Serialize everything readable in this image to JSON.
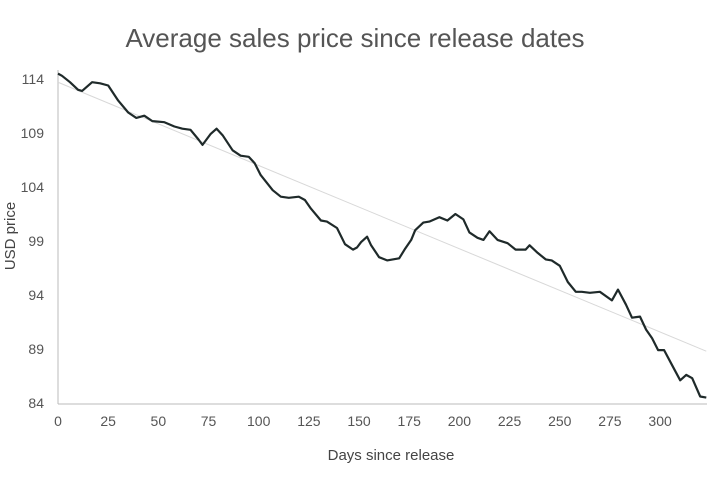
{
  "chart_data": {
    "type": "line",
    "title": "Average sales price since release dates",
    "xlabel": "Days since release",
    "ylabel": "USD price",
    "xlim": [
      0,
      323
    ],
    "ylim": [
      84,
      114
    ],
    "xticks": [
      0,
      25,
      50,
      75,
      100,
      125,
      150,
      175,
      200,
      225,
      250,
      275,
      300
    ],
    "yticks": [
      84,
      89,
      94,
      99,
      104,
      109,
      114
    ],
    "grid": false,
    "legend": "none",
    "colors": {
      "series": "#1f2a2a",
      "trend": "#d8d8d8",
      "axis": "#bbbbbb"
    },
    "series": [
      {
        "x": [
          0,
          2,
          6,
          10,
          12,
          17,
          21,
          25,
          30,
          35,
          39,
          43,
          47,
          53,
          58,
          62,
          66,
          70,
          72,
          76,
          79,
          82,
          87,
          91,
          95,
          98,
          101,
          107,
          111,
          115,
          120,
          123,
          126,
          131,
          134,
          139,
          143,
          147,
          149,
          151,
          154,
          156,
          160,
          164,
          170,
          173,
          176,
          178,
          182,
          185,
          190,
          194,
          198,
          202,
          205,
          209,
          212,
          215,
          219,
          224,
          228,
          233,
          235,
          239,
          243,
          246,
          250,
          254,
          258,
          261,
          265,
          270,
          276,
          279,
          283,
          286,
          290,
          293,
          296,
          299,
          302,
          306,
          310,
          313,
          316,
          320,
          323
        ],
        "y": [
          114.5,
          114.3,
          113.7,
          113,
          112.9,
          113.7,
          113.6,
          113.4,
          112,
          110.9,
          110.4,
          110.6,
          110.1,
          110,
          109.6,
          109.4,
          109.3,
          108.4,
          107.9,
          108.9,
          109.4,
          108.8,
          107.4,
          106.9,
          106.8,
          106.2,
          105.1,
          103.7,
          103.1,
          103,
          103.1,
          102.8,
          102,
          100.9,
          100.8,
          100.2,
          98.7,
          98.2,
          98.4,
          98.9,
          99.4,
          98.6,
          97.5,
          97.2,
          97.4,
          98.3,
          99.1,
          100,
          100.7,
          100.8,
          101.2,
          100.9,
          101.5,
          101,
          99.8,
          99.3,
          99.1,
          99.9,
          99.1,
          98.8,
          98.2,
          98.2,
          98.6,
          97.9,
          97.3,
          97.2,
          96.7,
          95.2,
          94.3,
          94.3,
          94.2,
          94.3,
          93.5,
          94.5,
          93.1,
          91.9,
          92,
          90.8,
          90,
          88.9,
          88.9,
          87.5,
          86.1,
          86.6,
          86.3,
          84.6,
          84.5
        ]
      }
    ],
    "trendline": {
      "x": [
        0,
        323
      ],
      "y": [
        113.7,
        88.8
      ]
    }
  }
}
